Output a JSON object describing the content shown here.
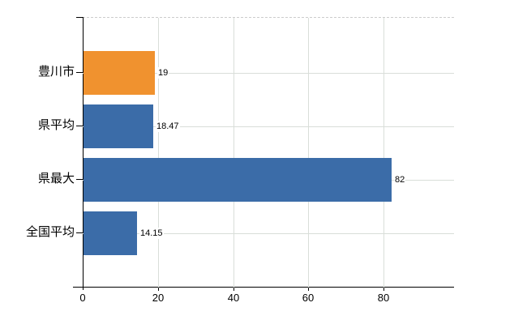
{
  "chart_data": {
    "type": "bar",
    "orientation": "horizontal",
    "title": "",
    "xlabel": "",
    "ylabel": "",
    "categories": [
      "豊川市",
      "県平均",
      "県最大",
      "全国平均"
    ],
    "values": [
      19,
      18.47,
      82,
      14.15
    ],
    "value_labels": [
      "19",
      "18.47",
      "82",
      "14.15"
    ],
    "highlight_index": 0,
    "x_tick_labels": [
      "0",
      "20",
      "40",
      "60",
      "80"
    ],
    "x_tick_values": [
      0,
      20,
      40,
      60,
      80
    ],
    "xlim": [
      0,
      98.8
    ],
    "grid": true,
    "legend_position": "none"
  },
  "colors": {
    "bar_highlight": "#f0922f",
    "bar_default": "#3b6ca8",
    "grid_line": "#d9ded9",
    "plot_top_border_dashed": "#cccccc",
    "axis": "#000000",
    "text": "#000000",
    "background": "#ffffff"
  }
}
